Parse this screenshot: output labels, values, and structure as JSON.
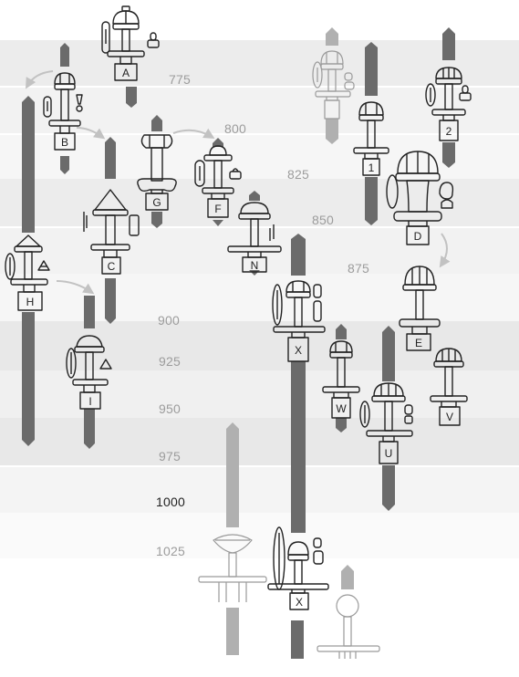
{
  "year_scale": [
    {
      "label": "775"
    },
    {
      "label": "800"
    },
    {
      "label": "825"
    },
    {
      "label": "850"
    },
    {
      "label": "875"
    },
    {
      "label": "900"
    },
    {
      "label": "925"
    },
    {
      "label": "950"
    },
    {
      "label": "975"
    },
    {
      "label": "1000"
    },
    {
      "label": "1025"
    }
  ],
  "sword_types": [
    {
      "label": "A"
    },
    {
      "label": "B"
    },
    {
      "label": "G"
    },
    {
      "label": "F"
    },
    {
      "label": "C"
    },
    {
      "label": "N"
    },
    {
      "label": "H"
    },
    {
      "label": "I"
    },
    {
      "label": "X"
    },
    {
      "label": "W"
    },
    {
      "label": "U"
    },
    {
      "label": "1"
    },
    {
      "label": "2"
    },
    {
      "label": "D"
    },
    {
      "label": "E"
    },
    {
      "label": "V"
    },
    {
      "label": "X"
    }
  ],
  "colors": {
    "band_light": "#ececec",
    "band_mid": "#e0e0e0",
    "bar_dark": "#6b6b6b",
    "bar_pale": "#b0b0b0",
    "outline": "#222222",
    "arrow": "#c2c2c2"
  }
}
